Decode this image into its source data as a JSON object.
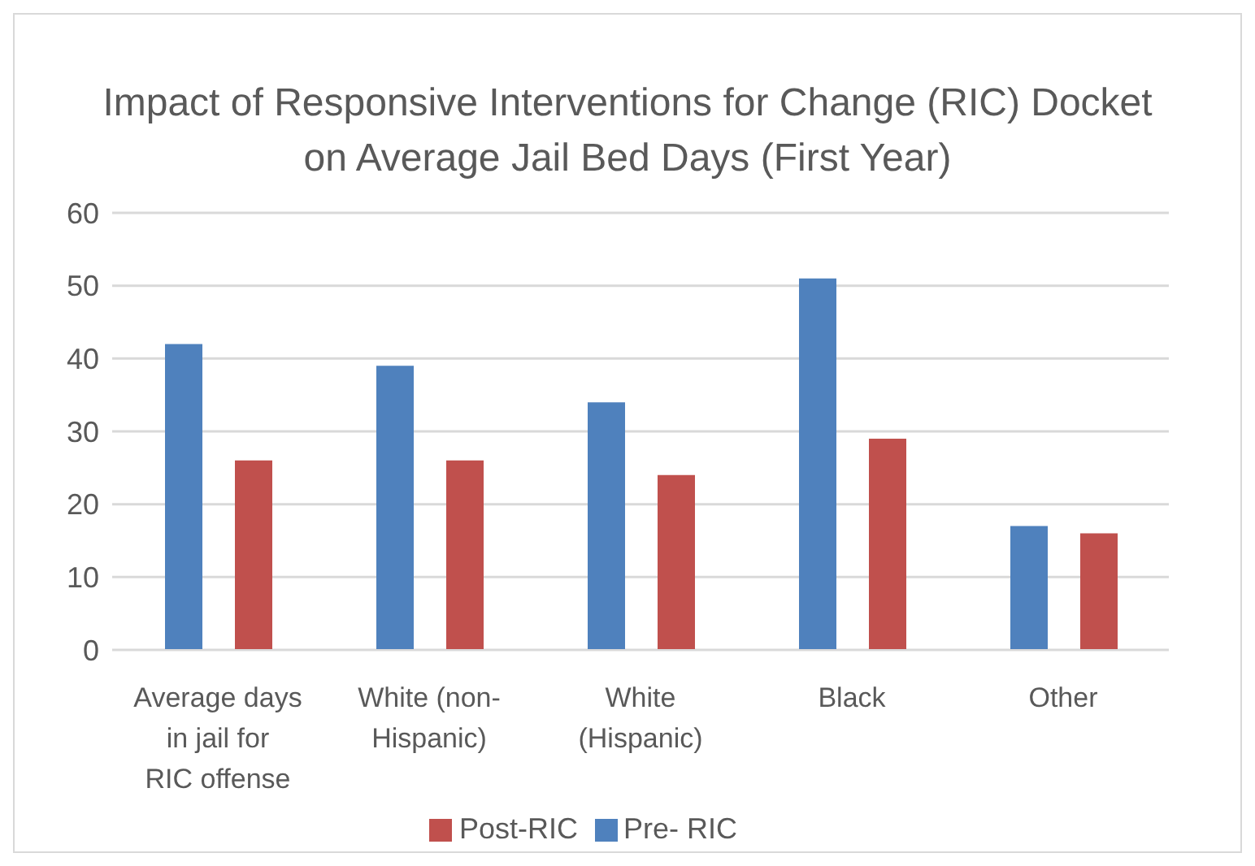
{
  "chart_data": {
    "type": "bar",
    "title": "Impact of Responsive Interventions for Change (RIC) Docket on Average Jail Bed Days (First Year)",
    "categories": [
      "Average days in jail for RIC offense",
      "White (non-Hispanic)",
      "White (Hispanic)",
      "Black",
      "Other"
    ],
    "series": [
      {
        "name": "Pre- RIC",
        "color": "#4f81bd",
        "values": [
          42,
          39,
          34,
          51,
          17
        ]
      },
      {
        "name": "Post-RIC",
        "color": "#c0504d",
        "values": [
          26,
          26,
          24,
          29,
          16
        ]
      }
    ],
    "ylim": [
      0,
      60
    ],
    "yticks": [
      0,
      10,
      20,
      30,
      40,
      50,
      60
    ],
    "grid": "y",
    "legend": "bottom"
  }
}
